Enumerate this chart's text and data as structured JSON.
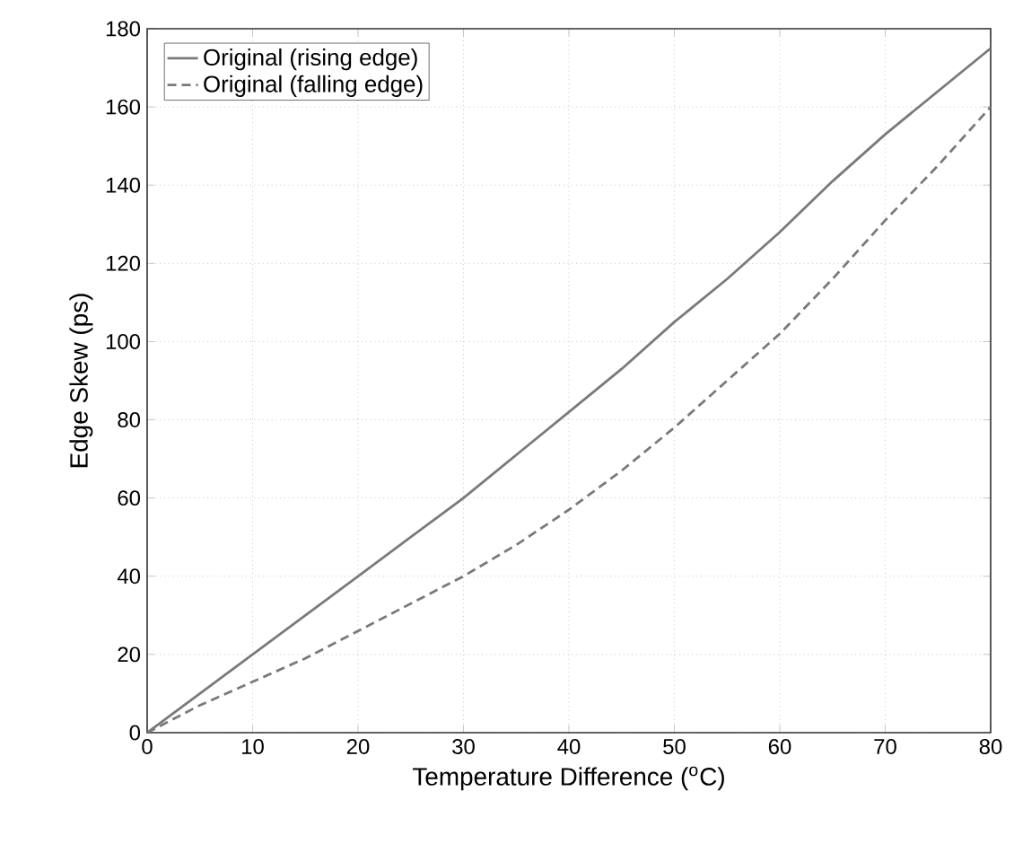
{
  "chart_data": {
    "type": "line",
    "xlabel": "Temperature Difference ($^{o}$C)",
    "ylabel": "Edge Skew (ps)",
    "x": [
      0,
      5,
      10,
      15,
      20,
      25,
      30,
      35,
      40,
      45,
      50,
      55,
      60,
      65,
      70,
      75,
      80
    ],
    "series": [
      {
        "name": "Original (rising edge)",
        "color": "#7a7a7a",
        "line_style": "solid",
        "values": [
          0,
          10,
          20,
          30,
          40,
          50,
          60,
          71,
          82,
          93,
          105,
          116,
          128,
          141,
          153,
          164,
          175
        ]
      },
      {
        "name": "Original (falling edge)",
        "color": "#7a7a7a",
        "line_style": "dashed",
        "values": [
          0,
          7,
          13,
          19,
          26,
          33,
          40,
          48,
          57,
          67,
          78,
          90,
          102,
          116,
          131,
          145,
          160
        ]
      }
    ],
    "xlim": [
      0,
      80
    ],
    "xticks": [
      0,
      10,
      20,
      30,
      40,
      50,
      60,
      70,
      80
    ],
    "ylim": [
      0,
      180
    ],
    "yticks": [
      0,
      20,
      40,
      60,
      80,
      100,
      120,
      140,
      160,
      180
    ],
    "grid": true,
    "legend": "top left",
    "marker": "none"
  }
}
